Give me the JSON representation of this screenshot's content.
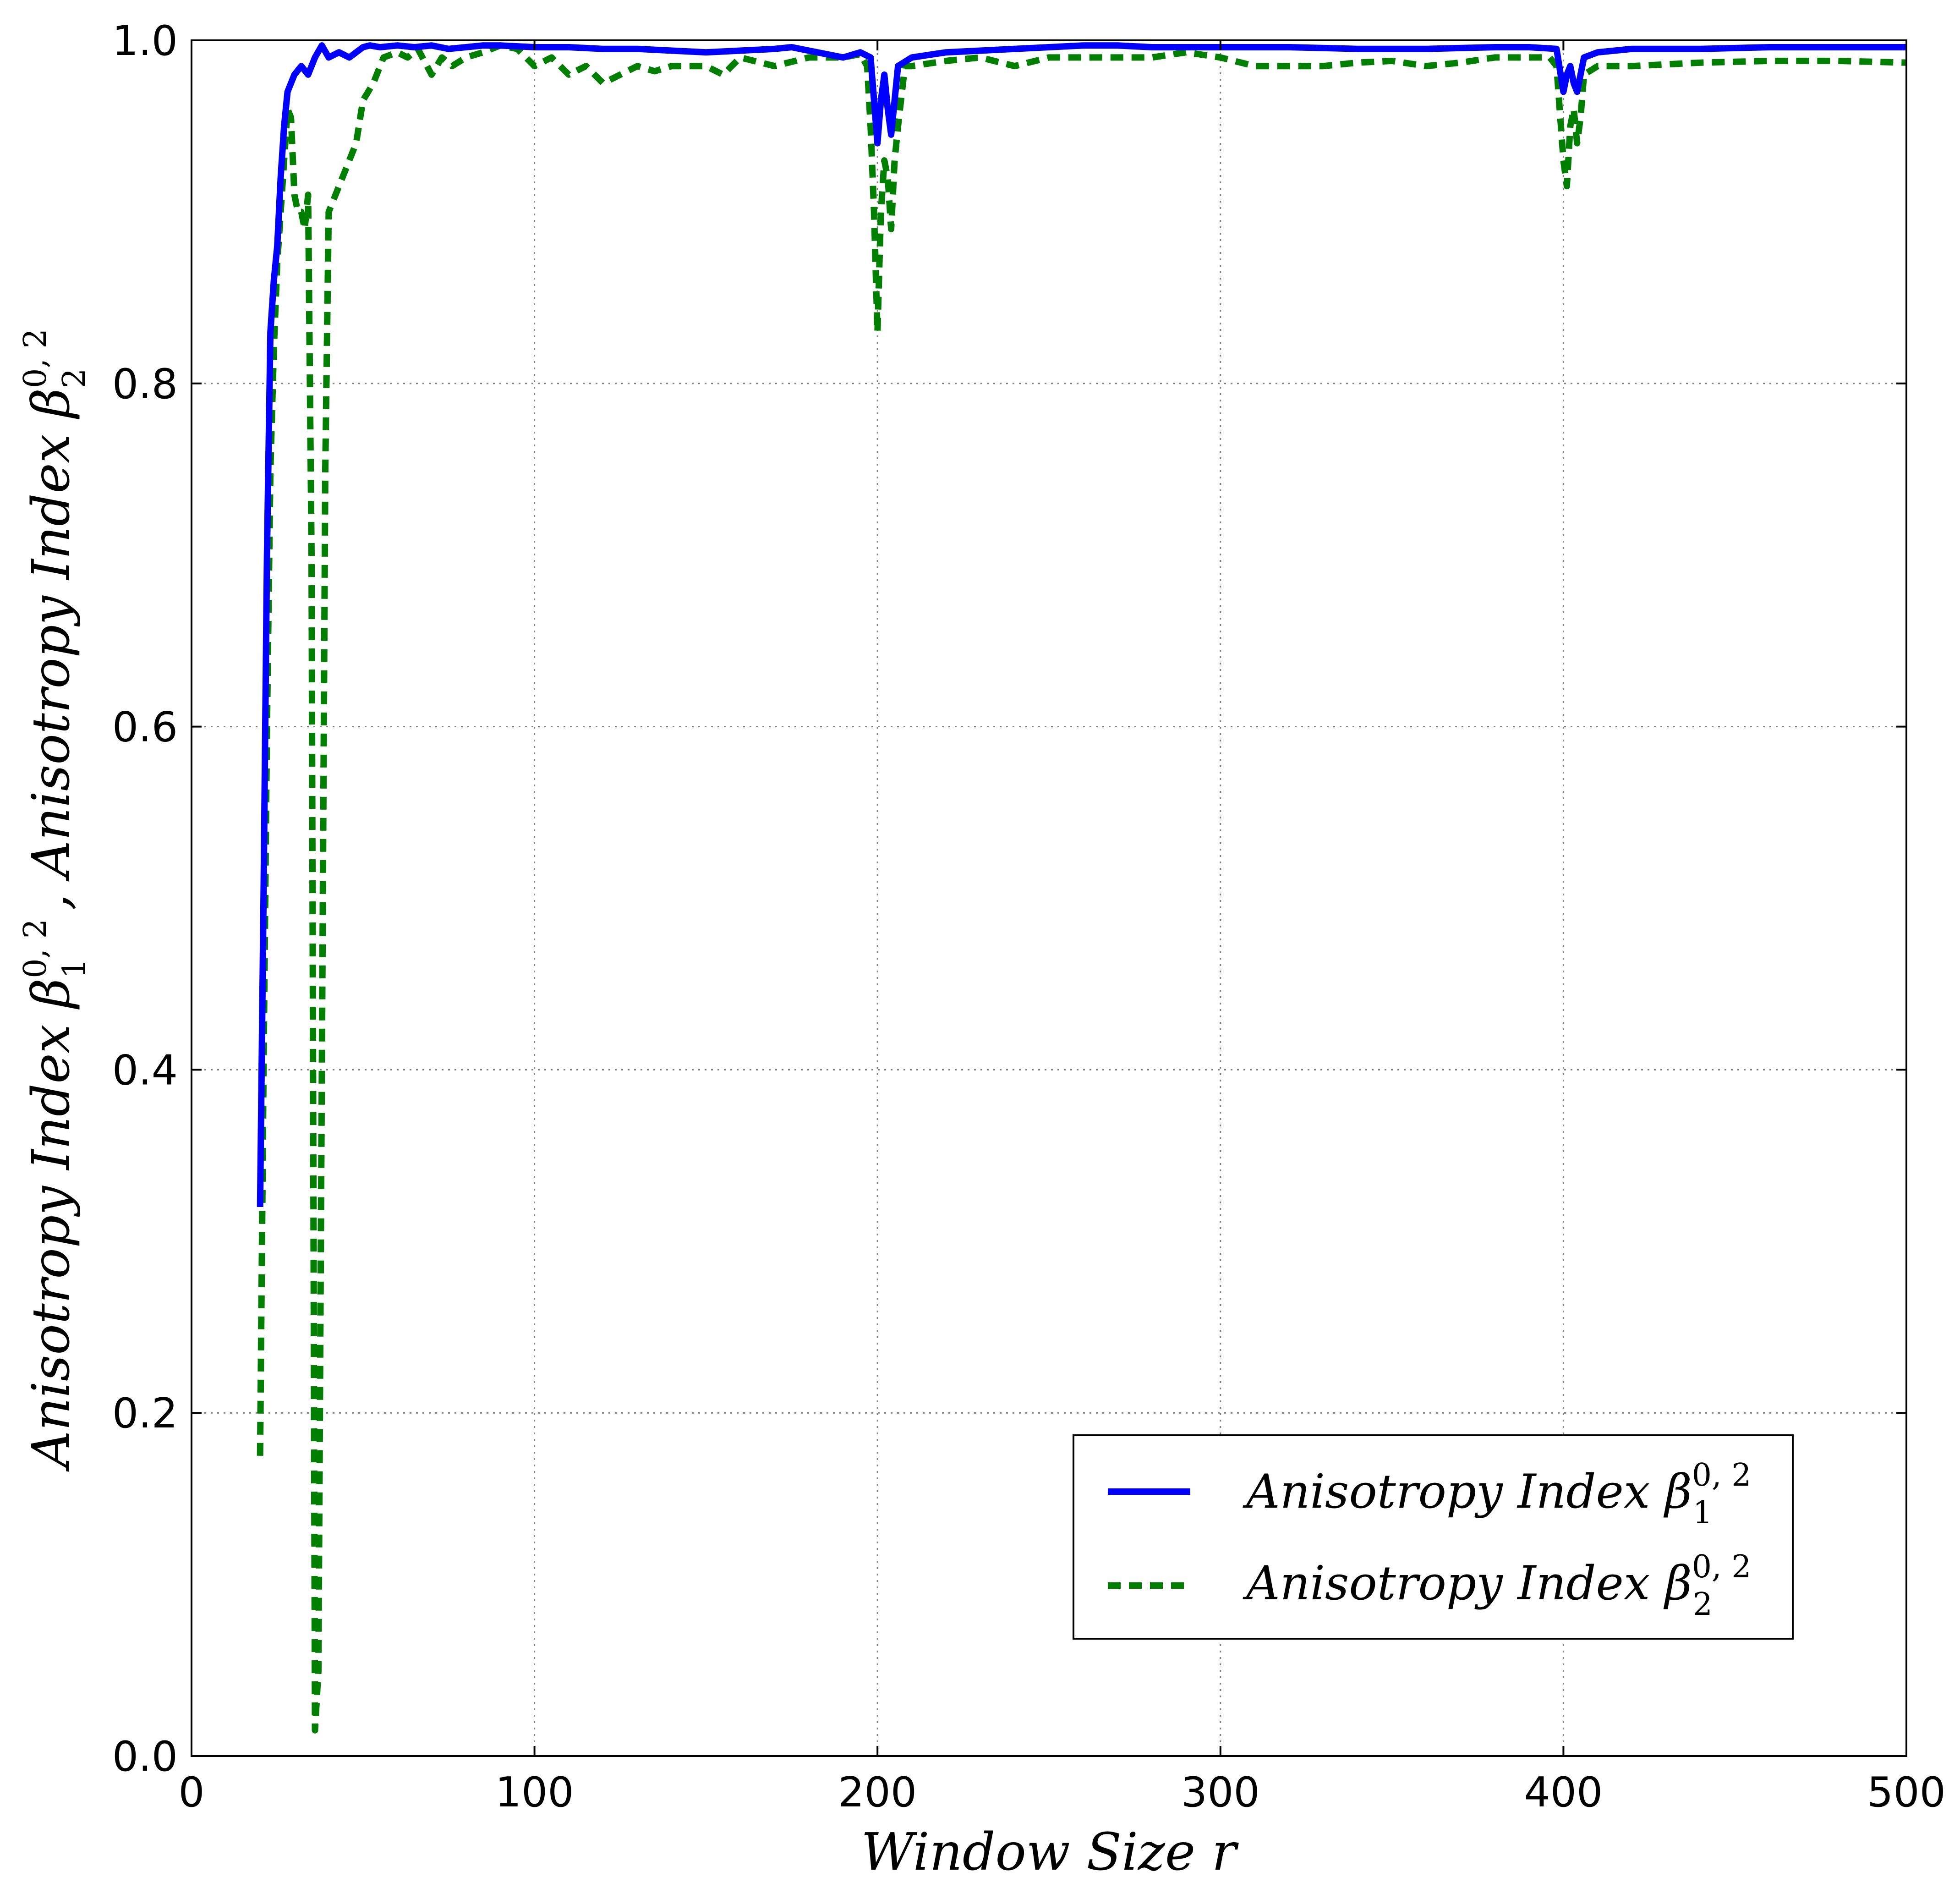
{
  "chart_data": {
    "type": "line",
    "title": "",
    "xlabel": "Window Size r",
    "ylabel": {
      "part1": "Anisotropy Index β",
      "sup1": "0, 2",
      "sub1": "1",
      "sep": " ,  ",
      "part2": "Anisotropy Index β",
      "sup2": "0, 2",
      "sub2": "2"
    },
    "xlim": [
      0,
      500
    ],
    "ylim": [
      0.0,
      1.0
    ],
    "xticks": [
      0,
      100,
      200,
      300,
      400,
      500
    ],
    "xtick_labels": [
      "0",
      "100",
      "200",
      "300",
      "400",
      "500"
    ],
    "yticks": [
      0.0,
      0.2,
      0.4,
      0.6,
      0.8,
      1.0
    ],
    "ytick_labels": [
      "0.0",
      "0.2",
      "0.4",
      "0.6",
      "0.8",
      "1.0"
    ],
    "grid": true,
    "legend_position": "lower-right",
    "colors": {
      "series1": "#0000ff",
      "series2": "#007f00"
    },
    "series": [
      {
        "name": "Anisotropy Index β",
        "sup": "0, 2",
        "sub": "1",
        "style": "solid",
        "x": [
          20,
          21,
          22,
          23,
          24,
          25,
          26,
          27,
          28,
          30,
          32,
          34,
          36,
          38,
          40,
          43,
          46,
          50,
          52,
          55,
          60,
          65,
          70,
          75,
          80,
          85,
          90,
          100,
          110,
          120,
          130,
          140,
          150,
          160,
          170,
          175,
          180,
          185,
          190,
          195,
          198,
          200,
          201,
          202,
          203,
          204,
          206,
          210,
          220,
          230,
          240,
          250,
          260,
          270,
          280,
          300,
          320,
          340,
          360,
          380,
          390,
          398,
          400,
          401,
          402,
          403,
          404,
          406,
          410,
          420,
          440,
          460,
          480,
          500
        ],
        "values": [
          0.32,
          0.5,
          0.7,
          0.83,
          0.86,
          0.88,
          0.92,
          0.95,
          0.97,
          0.98,
          0.985,
          0.98,
          0.99,
          0.997,
          0.99,
          0.993,
          0.99,
          0.996,
          0.997,
          0.996,
          0.997,
          0.996,
          0.997,
          0.995,
          0.996,
          0.997,
          0.997,
          0.996,
          0.996,
          0.995,
          0.995,
          0.994,
          0.993,
          0.994,
          0.995,
          0.996,
          0.994,
          0.992,
          0.99,
          0.993,
          0.99,
          0.94,
          0.965,
          0.98,
          0.96,
          0.945,
          0.985,
          0.99,
          0.993,
          0.994,
          0.995,
          0.996,
          0.997,
          0.997,
          0.996,
          0.996,
          0.996,
          0.995,
          0.995,
          0.996,
          0.996,
          0.995,
          0.97,
          0.98,
          0.985,
          0.975,
          0.97,
          0.99,
          0.993,
          0.995,
          0.995,
          0.996,
          0.996,
          0.996
        ]
      },
      {
        "name": "Anisotropy Index β",
        "sup": "0, 2",
        "sub": "2",
        "style": "dashed",
        "x": [
          20,
          21,
          22,
          23,
          24,
          25,
          26,
          27,
          28,
          29,
          30,
          31,
          32,
          33,
          34,
          35,
          36,
          37,
          38,
          39,
          40,
          42,
          45,
          48,
          50,
          53,
          56,
          60,
          63,
          66,
          70,
          73,
          76,
          80,
          85,
          90,
          95,
          100,
          105,
          110,
          115,
          120,
          125,
          130,
          135,
          140,
          150,
          155,
          160,
          170,
          180,
          190,
          195,
          197,
          198,
          199,
          200,
          201,
          202,
          203,
          204,
          205,
          206,
          208,
          210,
          220,
          230,
          240,
          250,
          260,
          270,
          280,
          290,
          300,
          310,
          320,
          330,
          340,
          350,
          360,
          370,
          380,
          390,
          396,
          398,
          400,
          401,
          402,
          403,
          404,
          405,
          406,
          410,
          420,
          440,
          460,
          480,
          500
        ],
        "values": [
          0.175,
          0.4,
          0.6,
          0.75,
          0.82,
          0.87,
          0.9,
          0.93,
          0.96,
          0.955,
          0.91,
          0.9,
          0.9,
          0.89,
          0.91,
          0.7,
          0.015,
          0.05,
          0.4,
          0.75,
          0.9,
          0.91,
          0.925,
          0.94,
          0.965,
          0.975,
          0.99,
          0.993,
          0.99,
          0.995,
          0.98,
          0.99,
          0.985,
          0.99,
          0.993,
          0.997,
          0.995,
          0.985,
          0.99,
          0.98,
          0.985,
          0.975,
          0.98,
          0.985,
          0.982,
          0.985,
          0.985,
          0.98,
          0.99,
          0.985,
          0.99,
          0.99,
          0.992,
          0.985,
          0.95,
          0.9,
          0.83,
          0.9,
          0.93,
          0.92,
          0.89,
          0.93,
          0.95,
          0.985,
          0.985,
          0.988,
          0.99,
          0.985,
          0.99,
          0.99,
          0.99,
          0.99,
          0.993,
          0.99,
          0.985,
          0.985,
          0.985,
          0.987,
          0.988,
          0.985,
          0.987,
          0.99,
          0.99,
          0.99,
          0.985,
          0.93,
          0.915,
          0.95,
          0.96,
          0.94,
          0.955,
          0.98,
          0.985,
          0.985,
          0.987,
          0.988,
          0.988,
          0.987
        ]
      }
    ]
  }
}
